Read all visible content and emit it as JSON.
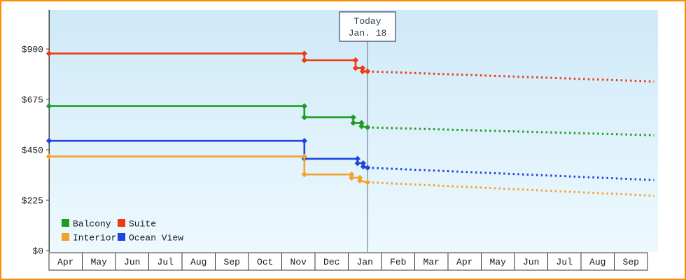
{
  "frame": {
    "border_color": "#ff8c00",
    "background": "#ffffff"
  },
  "chart_data": {
    "type": "line",
    "months": [
      "Apr",
      "May",
      "Jun",
      "Jul",
      "Aug",
      "Sep",
      "Oct",
      "Nov",
      "Dec",
      "Jan",
      "Feb",
      "Mar",
      "Apr",
      "May",
      "Jun",
      "Jul",
      "Aug",
      "Sep"
    ],
    "y_ticks": [
      {
        "value": 0,
        "label": "$0"
      },
      {
        "value": 225,
        "label": "$225"
      },
      {
        "value": 450,
        "label": "$450"
      },
      {
        "value": 675,
        "label": "$675"
      },
      {
        "value": 900,
        "label": "$900"
      }
    ],
    "ylim": [
      0,
      1075
    ],
    "today": {
      "label_line1": "Today",
      "label_line2": "Jan. 18",
      "month_index": 9,
      "day_fraction": 0.58
    },
    "series": [
      {
        "name": "Suite",
        "color": "#ee3b11",
        "solid": [
          [
            0,
            880
          ],
          [
            7.68,
            880
          ],
          [
            7.68,
            850
          ],
          [
            9.22,
            850
          ],
          [
            9.22,
            815
          ],
          [
            9.43,
            815
          ],
          [
            9.43,
            800
          ],
          [
            9.58,
            800
          ]
        ],
        "forecast": [
          [
            9.58,
            800
          ],
          [
            18.2,
            755
          ]
        ]
      },
      {
        "name": "Balcony",
        "color": "#1d9e20",
        "solid": [
          [
            0,
            645
          ],
          [
            7.68,
            645
          ],
          [
            7.68,
            595
          ],
          [
            9.15,
            595
          ],
          [
            9.15,
            570
          ],
          [
            9.4,
            570
          ],
          [
            9.4,
            555
          ],
          [
            9.58,
            550
          ]
        ],
        "forecast": [
          [
            9.58,
            550
          ],
          [
            18.2,
            515
          ]
        ]
      },
      {
        "name": "Ocean View",
        "color": "#2045dd",
        "solid": [
          [
            0,
            490
          ],
          [
            7.68,
            490
          ],
          [
            7.68,
            410
          ],
          [
            9.28,
            410
          ],
          [
            9.28,
            390
          ],
          [
            9.45,
            390
          ],
          [
            9.45,
            375
          ],
          [
            9.58,
            370
          ]
        ],
        "forecast": [
          [
            9.58,
            370
          ],
          [
            18.2,
            315
          ]
        ]
      },
      {
        "name": "Interior",
        "color": "#f4a32a",
        "solid": [
          [
            0,
            420
          ],
          [
            7.68,
            420
          ],
          [
            7.68,
            340
          ],
          [
            9.1,
            340
          ],
          [
            9.1,
            325
          ],
          [
            9.35,
            325
          ],
          [
            9.35,
            312
          ],
          [
            9.58,
            305
          ]
        ],
        "forecast": [
          [
            9.58,
            305
          ],
          [
            18.2,
            245
          ]
        ]
      }
    ],
    "legend_rows": [
      [
        "Balcony",
        "Suite"
      ],
      [
        "Interior",
        "Ocean View"
      ]
    ],
    "gradient": {
      "top": "#cfe9f8",
      "bottom": "#edf9fe"
    },
    "axis_color": "#444444",
    "text_color": "#1a1a1a",
    "today_line_color": "#5a6b7c",
    "today_box": {
      "fill": "#fdfeff",
      "stroke": "#47536b",
      "text_color": "#333c52"
    }
  }
}
